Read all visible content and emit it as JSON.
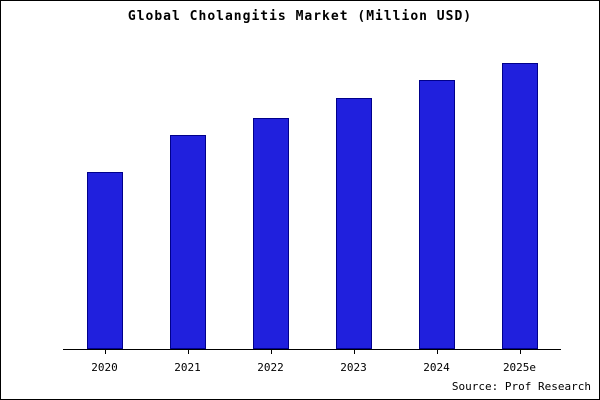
{
  "title": "Global Cholangitis Market (Million USD)",
  "source": "Source: Prof Research",
  "colors": {
    "bar_fill": "#2020dd",
    "bar_edge": "#00008b",
    "axis": "#000000",
    "background": "#ffffff"
  },
  "chart_data": {
    "type": "bar",
    "title": "Global Cholangitis Market (Million USD)",
    "categories": [
      "2020",
      "2021",
      "2022",
      "2023",
      "2024",
      "2025e"
    ],
    "values": [
      62,
      75,
      81,
      88,
      94,
      100
    ],
    "xlabel": "",
    "ylabel": "",
    "ylim": [
      0,
      105
    ],
    "grid": false,
    "legend": "none",
    "annotations": [
      "Source: Prof Research"
    ]
  }
}
